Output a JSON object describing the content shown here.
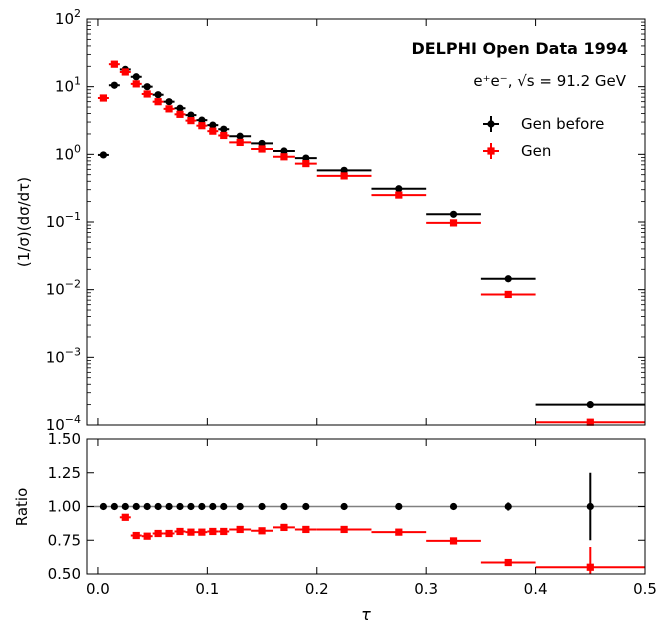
{
  "chart_data": [
    {
      "type": "scatter",
      "panel": "main",
      "title": "",
      "annotation_title": "DELPHI Open Data 1994",
      "annotation_sub": "e⁺e⁻, √s = 91.2 GeV",
      "xlabel": "τ",
      "ylabel": "(1/σ)(dσ/dτ)",
      "xlim": [
        -0.01,
        0.5
      ],
      "ylim": [
        0.0001,
        100
      ],
      "yscale": "log",
      "x_ticks": [
        0.0,
        0.1,
        0.2,
        0.3,
        0.4,
        0.5
      ],
      "y_ticks": [
        0.0001,
        0.001,
        0.01,
        0.1,
        1,
        10,
        100
      ],
      "y_tick_labels": [
        {
          "base": "10",
          "exp": "−4"
        },
        {
          "base": "10",
          "exp": "−3"
        },
        {
          "base": "10",
          "exp": "−2"
        },
        {
          "base": "10",
          "exp": "−1"
        },
        {
          "base": "10",
          "exp": "0"
        },
        {
          "base": "10",
          "exp": "1"
        },
        {
          "base": "10",
          "exp": "2"
        }
      ],
      "legend": [
        "Gen before",
        "Gen"
      ],
      "legend_position": "upper-right",
      "bins": [
        [
          0.0,
          0.01
        ],
        [
          0.01,
          0.02
        ],
        [
          0.02,
          0.03
        ],
        [
          0.03,
          0.04
        ],
        [
          0.04,
          0.05
        ],
        [
          0.05,
          0.06
        ],
        [
          0.06,
          0.07
        ],
        [
          0.07,
          0.08
        ],
        [
          0.08,
          0.09
        ],
        [
          0.09,
          0.1
        ],
        [
          0.1,
          0.11
        ],
        [
          0.11,
          0.12
        ],
        [
          0.12,
          0.14
        ],
        [
          0.14,
          0.16
        ],
        [
          0.16,
          0.18
        ],
        [
          0.18,
          0.2
        ],
        [
          0.2,
          0.25
        ],
        [
          0.25,
          0.3
        ],
        [
          0.3,
          0.35
        ],
        [
          0.35,
          0.4
        ],
        [
          0.4,
          0.5
        ]
      ],
      "series": [
        {
          "name": "Gen before",
          "color": "#000000",
          "marker": "circle",
          "values": [
            0.98,
            10.5,
            18.0,
            14.0,
            10.0,
            7.6,
            6.0,
            4.8,
            3.8,
            3.2,
            2.7,
            2.35,
            1.85,
            1.45,
            1.12,
            0.88,
            0.58,
            0.31,
            0.13,
            0.0145,
            0.0002
          ]
        },
        {
          "name": "Gen",
          "color": "#ff0000",
          "marker": "square",
          "values": [
            6.8,
            21.5,
            16.5,
            11.0,
            7.8,
            6.0,
            4.7,
            3.9,
            3.15,
            2.65,
            2.2,
            1.9,
            1.5,
            1.2,
            0.92,
            0.73,
            0.48,
            0.25,
            0.097,
            0.0085,
            0.00011
          ]
        }
      ]
    },
    {
      "type": "scatter",
      "panel": "ratio",
      "title": "",
      "xlabel": "τ",
      "ylabel": "Ratio",
      "xlim": [
        -0.01,
        0.5
      ],
      "ylim": [
        0.5,
        1.5
      ],
      "x_ticks": [
        0.0,
        0.1,
        0.2,
        0.3,
        0.4,
        0.5
      ],
      "x_tick_labels": [
        "0.0",
        "0.1",
        "0.2",
        "0.3",
        "0.4",
        "0.5"
      ],
      "y_ticks": [
        0.5,
        0.75,
        1.0,
        1.25,
        1.5
      ],
      "y_tick_labels": [
        "0.50",
        "0.75",
        "1.00",
        "1.25",
        "1.50"
      ],
      "reference_line": 1.0,
      "series": [
        {
          "name": "Gen before",
          "color": "#000000",
          "marker": "circle",
          "values": [
            1.0,
            1.0,
            1.0,
            1.0,
            1.0,
            1.0,
            1.0,
            1.0,
            1.0,
            1.0,
            1.0,
            1.0,
            1.0,
            1.0,
            1.0,
            1.0,
            1.0,
            1.0,
            1.0,
            1.0,
            1.0
          ],
          "errors": [
            0,
            0,
            0,
            0,
            0,
            0,
            0,
            0,
            0,
            0,
            0,
            0,
            0,
            0,
            0,
            0,
            0,
            0,
            0,
            0.03,
            0.25
          ]
        },
        {
          "name": "Gen",
          "color": "#ff0000",
          "marker": "square",
          "values": [
            null,
            null,
            0.92,
            0.785,
            0.78,
            0.8,
            0.8,
            0.815,
            0.81,
            0.81,
            0.815,
            0.815,
            0.83,
            0.82,
            0.845,
            0.83,
            0.83,
            0.81,
            0.745,
            0.585,
            0.55
          ],
          "errors": [
            0,
            0,
            0,
            0,
            0,
            0,
            0,
            0,
            0,
            0,
            0,
            0,
            0,
            0,
            0,
            0,
            0,
            0,
            0,
            0.02,
            0.15
          ]
        }
      ]
    }
  ]
}
